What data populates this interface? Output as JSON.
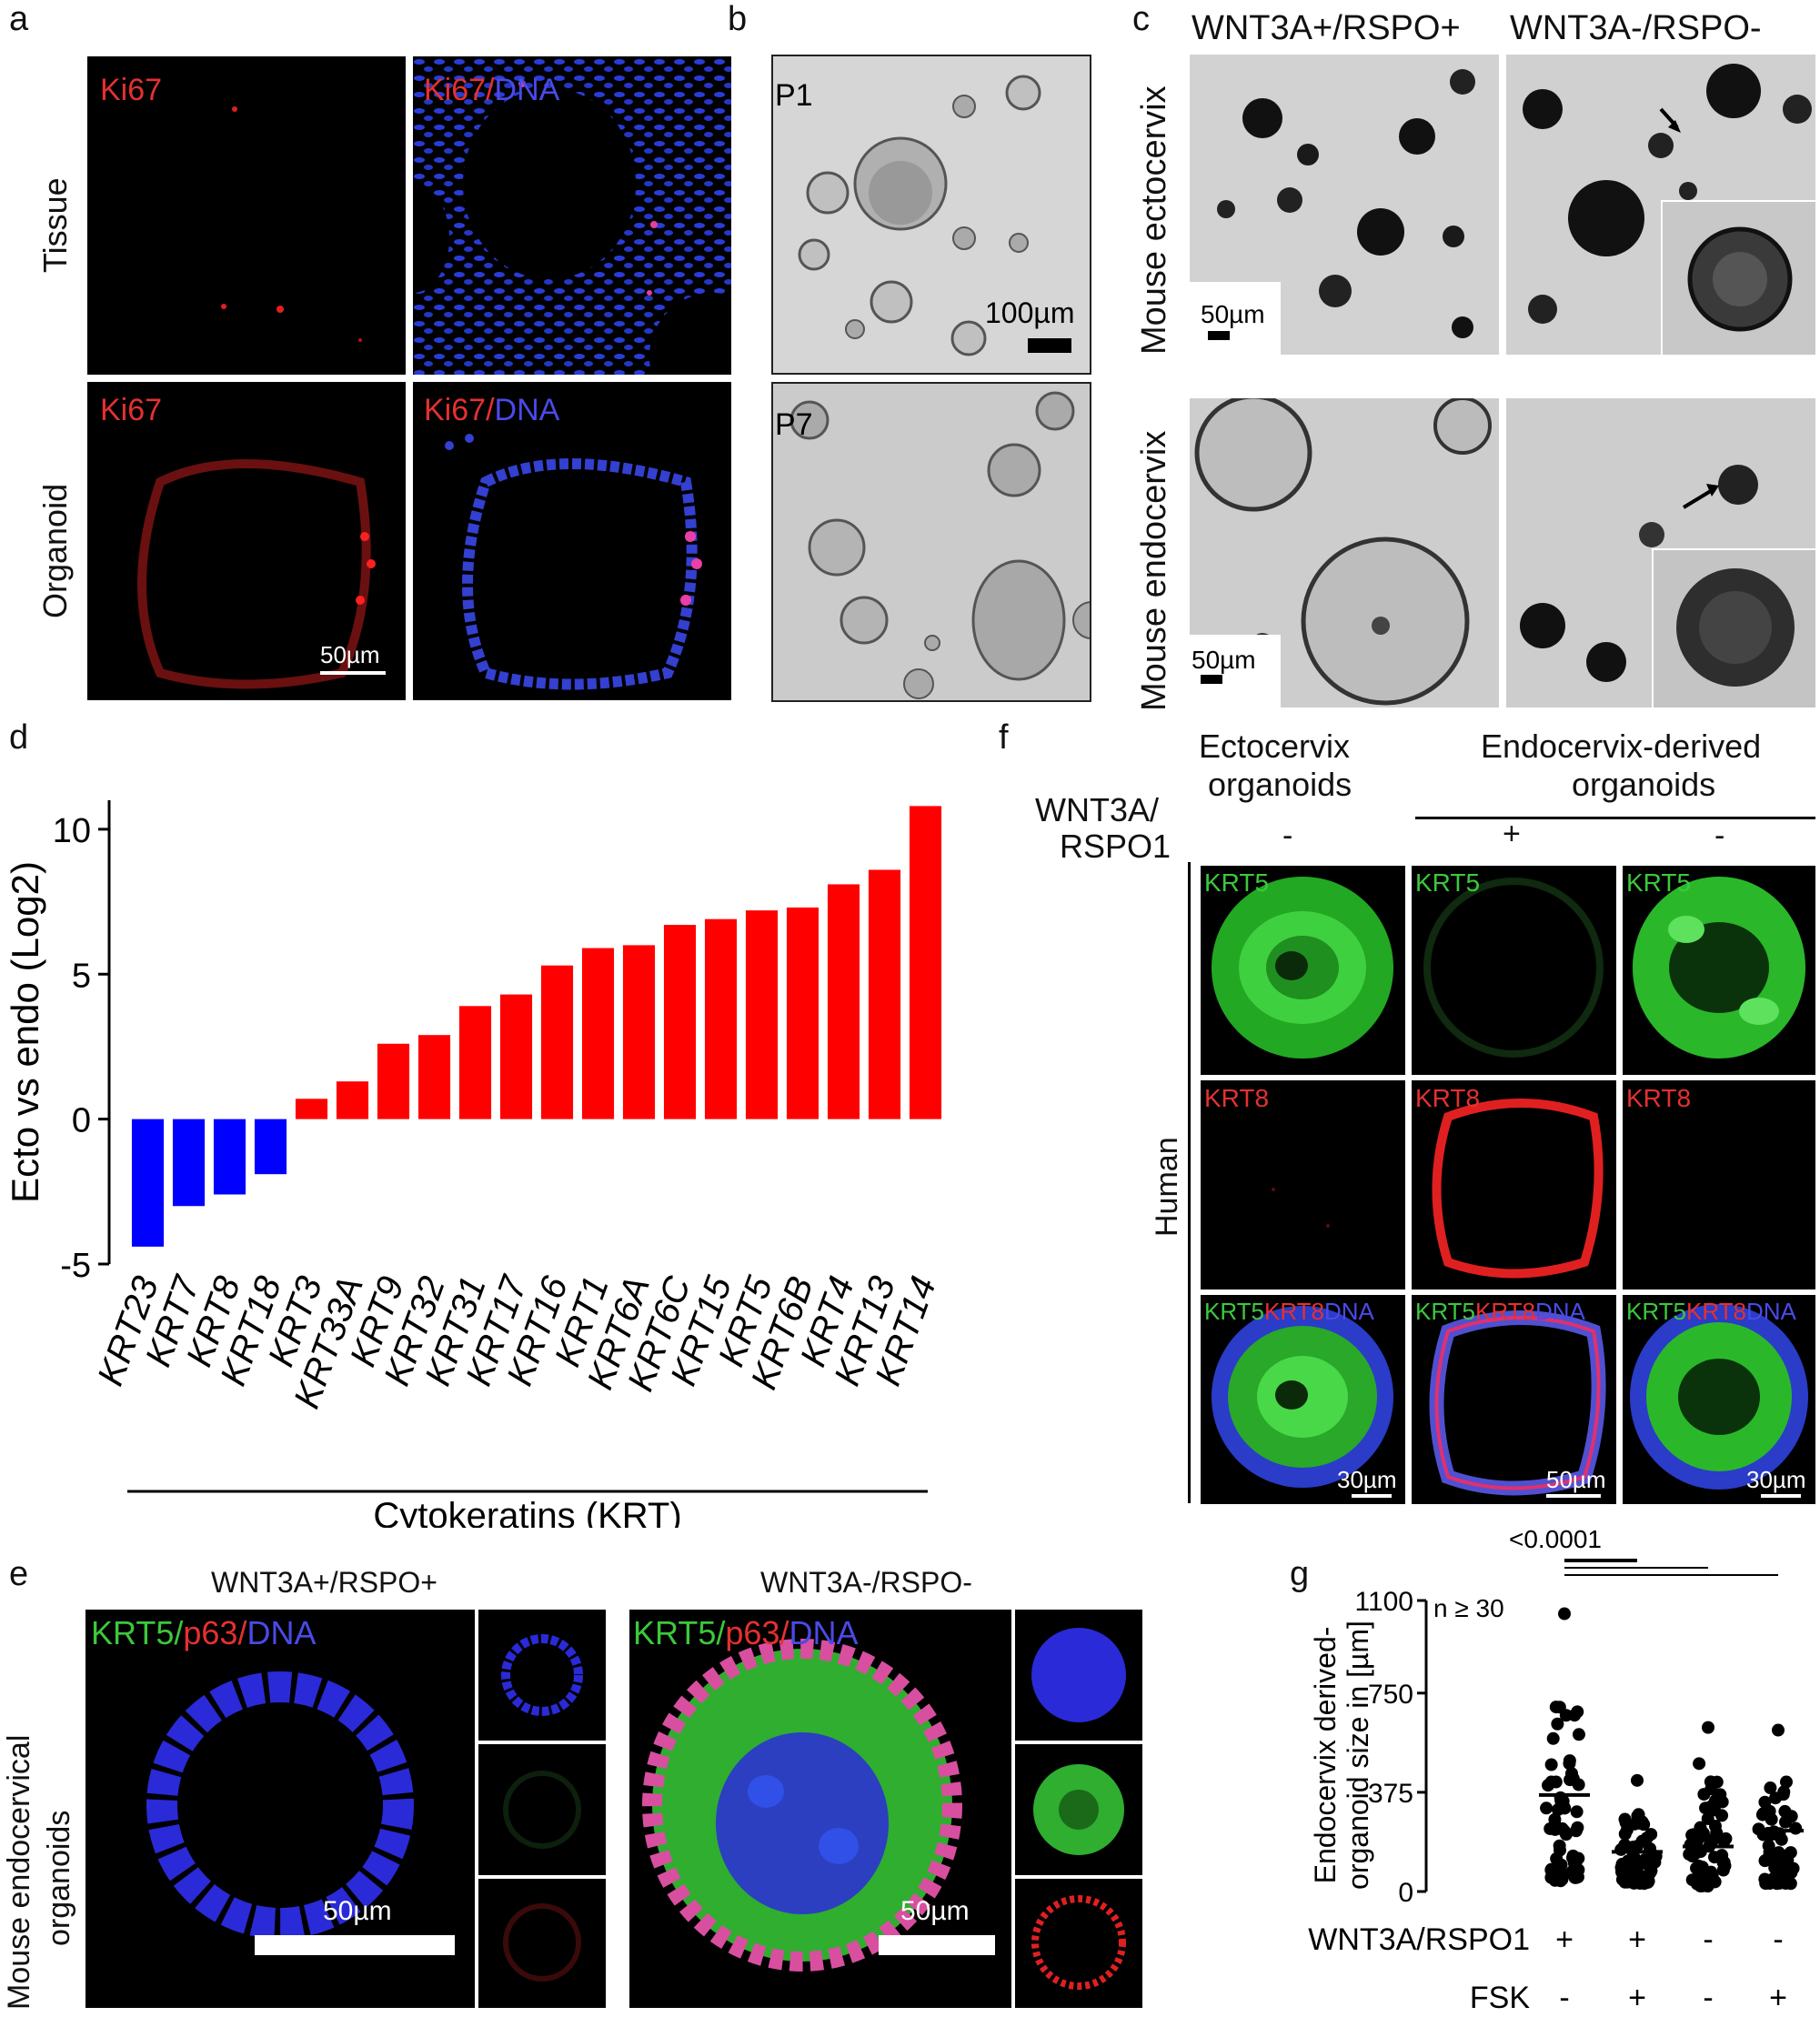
{
  "panel_letters": {
    "a": "a",
    "b": "b",
    "c": "c",
    "d": "d",
    "e": "e",
    "f": "f",
    "g": "g"
  },
  "panel_a": {
    "row_labels": [
      "Tissue",
      "Organoid"
    ],
    "col_labels": [
      {
        "parts": [
          {
            "text": "Ki67",
            "color": "#e53030"
          }
        ]
      },
      {
        "parts": [
          {
            "text": "Ki67",
            "color": "#e53030"
          },
          {
            "text": "/",
            "color": "#e53030"
          },
          {
            "text": "DNA",
            "color": "#4a4ae8"
          }
        ]
      }
    ],
    "scalebar": "50µm"
  },
  "panel_b": {
    "labels": [
      "P1",
      "P7"
    ],
    "scalebar": "100µm"
  },
  "panel_c": {
    "col_titles": [
      "WNT3A+/RSPO+",
      "WNT3A-/RSPO-"
    ],
    "row_titles": [
      "Mouse ectocervix",
      "Mouse endocervix"
    ],
    "scalebars": [
      "50µm",
      "50µm"
    ]
  },
  "panel_e": {
    "titles": [
      "WNT3A+/RSPO+",
      "WNT3A-/RSPO-"
    ],
    "row_title": [
      "Mouse endocervical",
      "organoids"
    ],
    "stain_parts": [
      {
        "text": "KRT5",
        "color": "#3cc83c"
      },
      {
        "text": "/",
        "color": "#3cc83c"
      },
      {
        "text": "p63",
        "color": "#e53030"
      },
      {
        "text": "/",
        "color": "#e53030"
      },
      {
        "text": "DNA",
        "color": "#4a4ae8"
      }
    ],
    "scalebars": [
      "50µm",
      "50µm"
    ]
  },
  "panel_f": {
    "headers": [
      "Ectocervix organoids",
      "Endocervix-derived organoids"
    ],
    "header_lines": [
      [
        "Ectocervix",
        "organoids"
      ],
      [
        "Endocervix-derived",
        "organoids"
      ]
    ],
    "treatment_label": [
      "WNT3A/",
      "RSPO1"
    ],
    "treatment_values": [
      "-",
      "+",
      "-"
    ],
    "row_side_label": "Human",
    "row_stains": [
      "KRT5",
      "KRT8",
      "KRT5KRT8DNA"
    ],
    "merge_parts": [
      {
        "text": "KRT5",
        "color": "#3cc83c"
      },
      {
        "text": "KRT8",
        "color": "#e53030"
      },
      {
        "text": "DNA",
        "color": "#4a4ae8"
      }
    ],
    "scalebars": [
      "30µm",
      "50µm",
      "30µm"
    ]
  },
  "colors": {
    "up": "#ff0000",
    "down": "#0000ff",
    "bg": "#ffffff",
    "micro_bg": "#000000"
  },
  "chart_data": [
    {
      "id": "d",
      "type": "bar",
      "ylabel": "Ecto vs endo (Log2)",
      "xlabel": "Cytokeratins (KRT)",
      "ylim": [
        -5,
        11
      ],
      "yticks": [
        -5,
        0,
        5,
        10
      ],
      "categories": [
        "KRT23",
        "KRT7",
        "KRT8",
        "KRT18",
        "KRT3",
        "KRT33A",
        "KRT9",
        "KRT32",
        "KRT31",
        "KRT17",
        "KRT16",
        "KRT1",
        "KRT6A",
        "KRT6C",
        "KRT15",
        "KRT5",
        "KRT6B",
        "KRT4",
        "KRT13",
        "KRT14"
      ],
      "values": [
        -4.4,
        -3.0,
        -2.6,
        -1.9,
        0.7,
        1.3,
        2.6,
        2.9,
        3.9,
        4.3,
        5.3,
        5.9,
        6.0,
        6.7,
        6.9,
        7.2,
        7.3,
        8.1,
        8.6,
        10.8
      ],
      "grid": false
    },
    {
      "id": "g",
      "type": "scatter",
      "ylabel": [
        "Endocervix derived-",
        "organoid size in [µm]"
      ],
      "yticks": [
        0,
        375,
        750,
        1100
      ],
      "ylim": [
        0,
        1100
      ],
      "annotation_n": "n ≥ 30",
      "pvalue": "<0.0001",
      "groups": [
        {
          "wnt": "+",
          "fsk": "-",
          "mean": 365,
          "min": 40,
          "max": 1050
        },
        {
          "wnt": "+",
          "fsk": "+",
          "mean": 150,
          "min": 30,
          "max": 420
        },
        {
          "wnt": "-",
          "fsk": "-",
          "mean": 170,
          "min": 20,
          "max": 620
        },
        {
          "wnt": "-",
          "fsk": "+",
          "mean": 230,
          "min": 30,
          "max": 610
        }
      ],
      "row_labels": [
        "WNT3A/RSPO1",
        "FSK"
      ],
      "grid": false
    }
  ]
}
